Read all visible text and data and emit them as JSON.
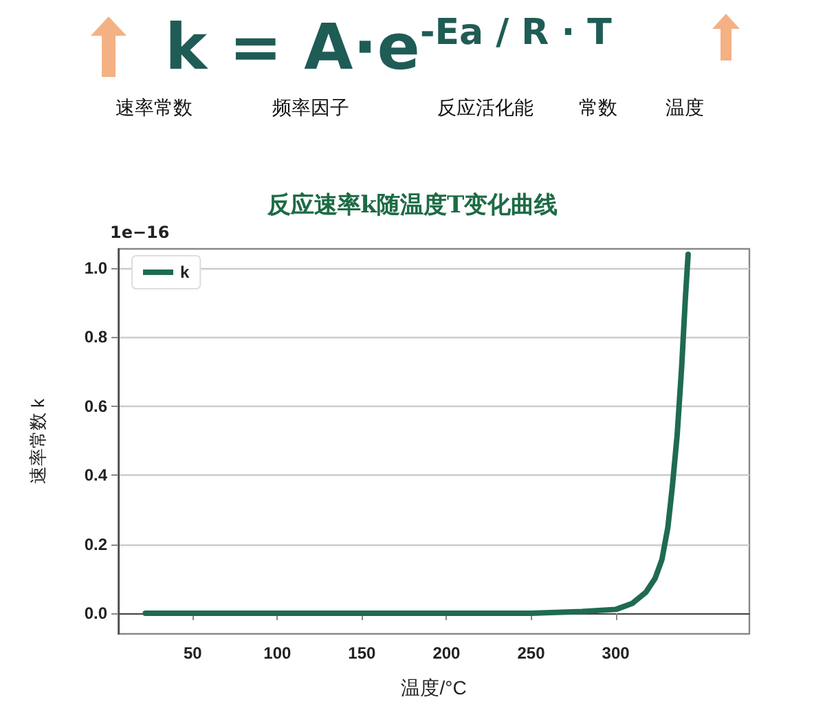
{
  "chart_data": {
    "type": "line",
    "title": "反应速率k随温度T变化曲线",
    "xlabel": "温度/°C",
    "ylabel": "速率常数 k",
    "annotations": [
      "k = A·e$^{-Ea / R · T}$",
      "速率常数",
      "频率因子",
      "反应活化能",
      "常数",
      "温度",
      "1e−16"
    ],
    "series": [
      {
        "name": "k",
        "color": "#1e6b52",
        "x": [
          22,
          50,
          100,
          150,
          200,
          250,
          280,
          290,
          300.2,
          309.7,
          317.9,
          323.3,
          327.3,
          330.8,
          333.5,
          336.3,
          339,
          341.2,
          342.8
        ],
        "values": [
          0,
          0,
          0,
          0,
          0,
          0,
          0.005,
          0.008,
          0.011,
          0.028,
          0.061,
          0.101,
          0.155,
          0.248,
          0.368,
          0.515,
          0.715,
          0.915,
          1.04
        ]
      }
    ],
    "xlim": [
      6,
      379
    ],
    "xticks": [
      50,
      100,
      150,
      200,
      250,
      300
    ],
    "ylim": [
      -0.06,
      1.056
    ],
    "yticks": [
      {
        "value": 0,
        "label": "0.0"
      },
      {
        "value": 0.2,
        "label": "0.2"
      },
      {
        "value": 0.4,
        "label": "0.4"
      },
      {
        "value": 0.6,
        "label": "0.6"
      },
      {
        "value": 0.8,
        "label": "0.8"
      },
      {
        "value": 1,
        "label": "1.0"
      }
    ],
    "grid": "y",
    "legend": "top left",
    "marker": "none",
    "line_style": "solid"
  }
}
